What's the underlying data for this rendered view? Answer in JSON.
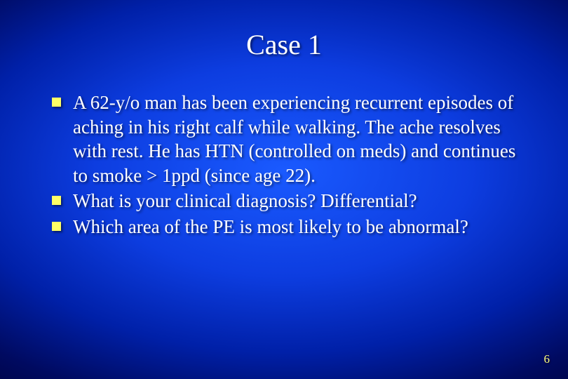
{
  "slide": {
    "title": "Case 1",
    "bullets": [
      "A 62-y/o man has been experiencing recurrent episodes of aching in his right calf while walking.  The ache resolves with rest.  He has HTN (controlled on meds) and continues to smoke > 1ppd (since age 22).",
      "What is your clinical diagnosis? Differential?",
      "Which area of the PE is most likely to be abnormal?"
    ],
    "page_number": "6"
  },
  "style": {
    "title_fontsize": 40,
    "body_fontsize": 27,
    "title_color": "#ffffff",
    "body_color": "#ffffff",
    "bullet_color": "#ffff66",
    "page_number_color": "#ffff80",
    "font_family": "Times New Roman",
    "background_gradient": {
      "type": "radial",
      "stops": [
        "#1a5aff",
        "#0d3de0",
        "#0020a8",
        "#000a60",
        "#000030"
      ]
    },
    "text_shadow": "2px 2px 3px rgba(0,0,0,0.55)"
  }
}
